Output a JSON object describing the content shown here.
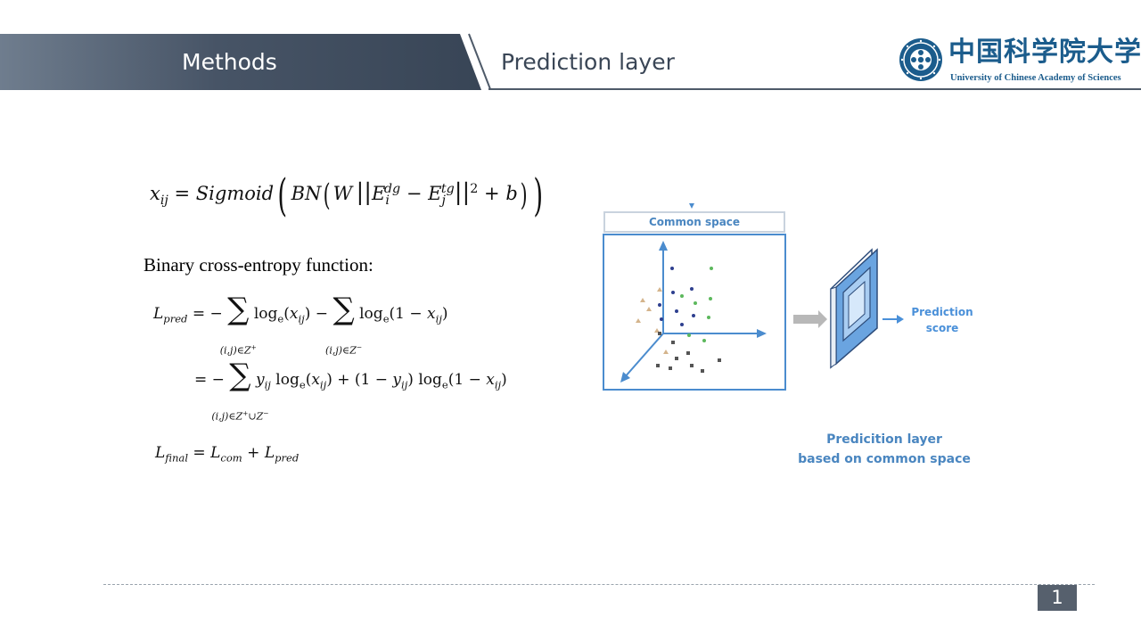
{
  "header": {
    "section": "Methods",
    "title": "Prediction layer"
  },
  "logo": {
    "chinese_name": "中国科学院大学",
    "english_name": "University of Chinese Academy of Sciences",
    "seal_icon": "ucas-seal-icon"
  },
  "formulas": {
    "bce_label": "Binary cross-entropy function:",
    "eq_sigmoid": "x_ij = Sigmoid(BN(W ||E_i^dg − E_j^tg||^2 + b))",
    "eq_lpred_line1": "L_pred = − Σ_{(i,j)∈Z+} log_e(x_ij) − Σ_{(i,j)∈Z−} log_e(1 − x_ij)",
    "eq_lpred_line2": "= − Σ_{(i,j)∈Z+∪Z−} y_ij log_e(x_ij) + (1 − y_ij) log_e(1 − x_ij)",
    "eq_lfinal": "L_final = L_com + L_pred"
  },
  "diagram": {
    "common_space_label": "Common space",
    "prediction_score_label": "Prediction score",
    "caption_line1": "Predicition layer",
    "caption_line2": "based on common space",
    "colors": {
      "accent_blue": "#4a86c0",
      "box_border": "#4b8cce",
      "point_green": "#5cb85c",
      "point_navy": "#2e3f8f",
      "point_tan": "#d4b48c",
      "point_gray": "#555555"
    }
  },
  "footer": {
    "page_number": "1"
  }
}
